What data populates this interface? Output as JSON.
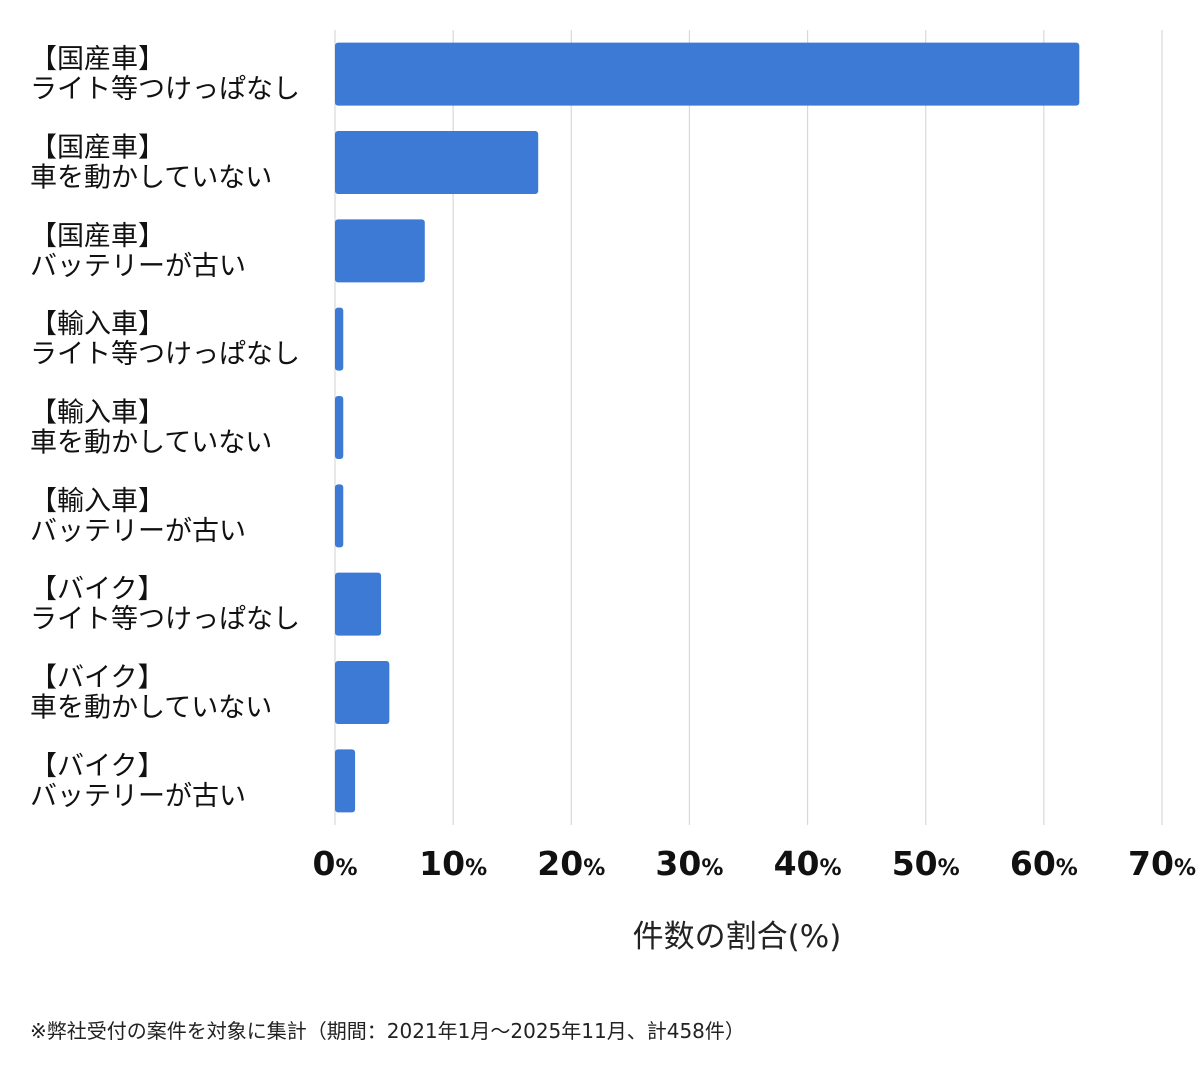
{
  "chart_data": {
    "type": "bar",
    "orientation": "horizontal",
    "categories": [
      [
        "【国産車】",
        "ライト等つけっぱなし"
      ],
      [
        "【国産車】",
        "車を動かしていない"
      ],
      [
        "【国産車】",
        "バッテリーが古い"
      ],
      [
        "【輸入車】",
        "ライト等つけっぱなし"
      ],
      [
        "【輸入車】",
        "車を動かしていない"
      ],
      [
        "【輸入車】",
        "バッテリーが古い"
      ],
      [
        "【バイク】",
        "ライト等つけっぱなし"
      ],
      [
        "【バイク】",
        "車を動かしていない"
      ],
      [
        "【バイク】",
        "バッテリーが古い"
      ]
    ],
    "values": [
      63,
      17.2,
      7.6,
      0.7,
      0.7,
      0.7,
      3.9,
      4.6,
      1.7
    ],
    "xlim": [
      0,
      70
    ],
    "xticks": [
      {
        "num": "0",
        "unit": "%"
      },
      {
        "num": "10",
        "unit": "%"
      },
      {
        "num": "20",
        "unit": "%"
      },
      {
        "num": "30",
        "unit": "%"
      },
      {
        "num": "40",
        "unit": "%"
      },
      {
        "num": "50",
        "unit": "%"
      },
      {
        "num": "60",
        "unit": "%"
      },
      {
        "num": "70",
        "unit": "%"
      }
    ],
    "xlabel": "件数の割合(%)",
    "ylabel": "",
    "title": "",
    "grid": true,
    "bar_color": "#3d7ad6",
    "grid_color": "#d9d9d9"
  },
  "footnote": "※弊社受付の案件を対象に集計（期間：2021年1月～2025年11月、計458件）"
}
